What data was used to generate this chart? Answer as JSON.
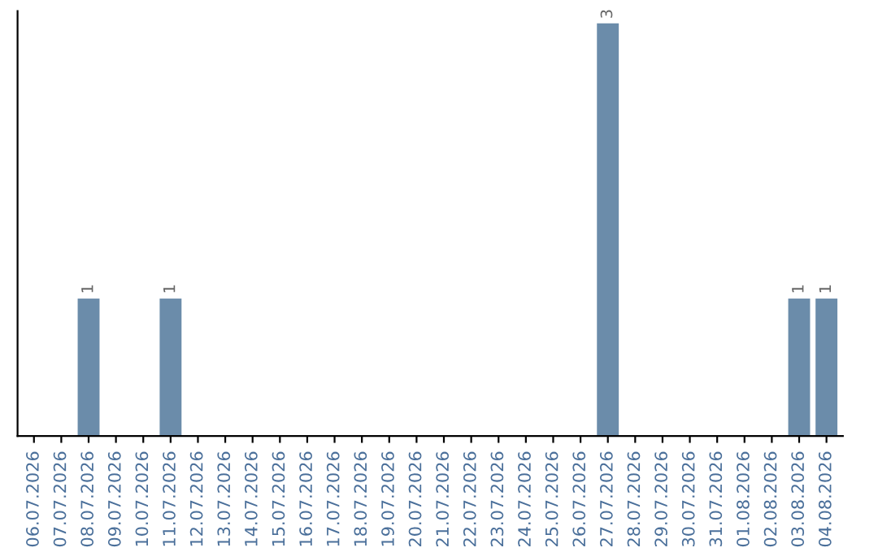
{
  "chart_data": {
    "type": "bar",
    "categories": [
      "06.07.2026",
      "07.07.2026",
      "08.07.2026",
      "09.07.2026",
      "10.07.2026",
      "11.07.2026",
      "12.07.2026",
      "13.07.2026",
      "14.07.2026",
      "15.07.2026",
      "16.07.2026",
      "17.07.2026",
      "18.07.2026",
      "19.07.2026",
      "20.07.2026",
      "21.07.2026",
      "22.07.2026",
      "23.07.2026",
      "24.07.2026",
      "25.07.2026",
      "26.07.2026",
      "27.07.2026",
      "28.07.2026",
      "29.07.2026",
      "30.07.2026",
      "31.07.2026",
      "01.08.2026",
      "02.08.2026",
      "03.08.2026",
      "04.08.2026"
    ],
    "values": [
      0,
      0,
      1,
      0,
      0,
      1,
      0,
      0,
      0,
      0,
      0,
      0,
      0,
      0,
      0,
      0,
      0,
      0,
      0,
      0,
      0,
      3,
      0,
      0,
      0,
      0,
      0,
      0,
      1,
      1
    ],
    "value_labels": [
      null,
      null,
      "1",
      null,
      null,
      "1",
      null,
      null,
      null,
      null,
      null,
      null,
      null,
      null,
      null,
      null,
      null,
      null,
      null,
      null,
      null,
      "3",
      null,
      null,
      null,
      null,
      null,
      null,
      "1",
      "1"
    ],
    "color": "#6b8caa",
    "grid": false,
    "legend": false
  }
}
